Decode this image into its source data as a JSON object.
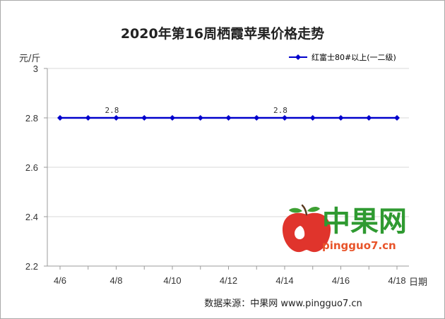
{
  "chart_data": {
    "type": "line",
    "title": "2020年第16周栖霞苹果价格走势",
    "ylabel": "元/斤",
    "xlabel": "日期",
    "ylim": [
      2.2,
      3.0
    ],
    "ytick_values": [
      2.2,
      2.4,
      2.6,
      2.8,
      3.0
    ],
    "ytick_labels": [
      "2.2",
      "2.4",
      "2.6",
      "2.8",
      "3"
    ],
    "x_tick_labels": [
      "4/6",
      "4/8",
      "4/10",
      "4/12",
      "4/14",
      "4/16",
      "4/18"
    ],
    "x": [
      "4/6",
      "4/7",
      "4/8",
      "4/9",
      "4/10",
      "4/11",
      "4/12",
      "4/13",
      "4/14",
      "4/15",
      "4/16",
      "4/17",
      "4/18"
    ],
    "series": [
      {
        "name": "红富士80#以上(一二级)",
        "color": "#0000cc",
        "values": [
          2.8,
          2.8,
          2.8,
          2.8,
          2.8,
          2.8,
          2.8,
          2.8,
          2.8,
          2.8,
          2.8,
          2.8,
          2.8
        ]
      }
    ],
    "data_labels": [
      {
        "x": "4/8",
        "text": "2.8"
      },
      {
        "x": "4/14",
        "text": "2.8"
      }
    ],
    "grid": "horizontal",
    "legend_position": "top-right"
  },
  "watermark": {
    "brand": "中果网",
    "url": "pingguo7.cn",
    "icon": "apple-logo-icon"
  },
  "source": "数据来源：中果网 www.pingguo7.cn"
}
